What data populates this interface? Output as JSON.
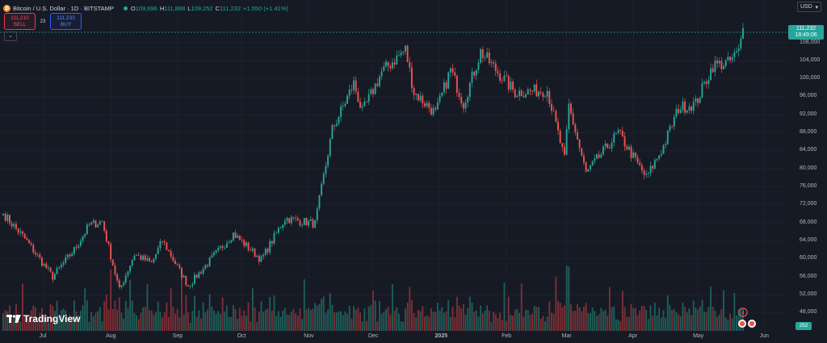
{
  "header": {
    "coin_glyph": "₿",
    "title": "Bitcoin / U.S. Dollar · 1D · BITSTAMP",
    "ohlc": [
      {
        "label": "O",
        "value": "109,696"
      },
      {
        "label": "H",
        "value": "111,888"
      },
      {
        "label": "L",
        "value": "109,252"
      },
      {
        "label": "C",
        "value": "111,232"
      }
    ],
    "change": "+1,550 (+1.41%)"
  },
  "trade": {
    "sell_price": "111,210",
    "sell_label": "SELL",
    "spread": "23",
    "buy_price": "111,233",
    "buy_label": "BUY"
  },
  "collapse_icon": "chevron-down-icon",
  "currency": {
    "label": "USD",
    "icon": "chevron-down-icon"
  },
  "price_axis": {
    "ticks": [
      "108,000",
      "104,000",
      "100,000",
      "96,000",
      "92,000",
      "88,000",
      "84,000",
      "80,000",
      "76,000",
      "72,000",
      "68,000",
      "64,000",
      "60,000",
      "56,000",
      "52,000",
      "48,000"
    ]
  },
  "time_axis": {
    "labels": [
      "Jul",
      "Aug",
      "Sep",
      "Oct",
      "Nov",
      "Dec",
      "2025",
      "Feb",
      "Mar",
      "Apr",
      "May",
      "Jun"
    ]
  },
  "last_price": {
    "value": "111,232",
    "countdown": "18:49:06"
  },
  "volume_label": "252",
  "brand": {
    "logo_text": "TradingView"
  },
  "colors": {
    "up": "#26a69a",
    "down": "#ef5350",
    "background": "#161a25",
    "grid": "#232632",
    "vol_up": "#1f5d58",
    "vol_down": "#7d2f34",
    "sell": "#f23645",
    "buy": "#2962ff",
    "coin": "#f7931a"
  },
  "chart_data": {
    "type": "candlestick",
    "title": "Bitcoin / U.S. Dollar · 1D · BITSTAMP",
    "ylim": [
      46000,
      113000
    ],
    "grid": true,
    "x_start": "2024-06-12",
    "x_end": "2025-05-22",
    "anchors": [
      {
        "date": "2024-06-12",
        "price": 70000
      },
      {
        "date": "2024-06-22",
        "price": 64500
      },
      {
        "date": "2024-07-05",
        "price": 56000
      },
      {
        "date": "2024-07-15",
        "price": 62000
      },
      {
        "date": "2024-07-22",
        "price": 67500
      },
      {
        "date": "2024-07-28",
        "price": 68300
      },
      {
        "date": "2024-08-05",
        "price": 53000
      },
      {
        "date": "2024-08-12",
        "price": 61000
      },
      {
        "date": "2024-08-20",
        "price": 59000
      },
      {
        "date": "2024-08-25",
        "price": 64100
      },
      {
        "date": "2024-09-06",
        "price": 54000
      },
      {
        "date": "2024-09-15",
        "price": 59000
      },
      {
        "date": "2024-09-27",
        "price": 65600
      },
      {
        "date": "2024-10-10",
        "price": 59800
      },
      {
        "date": "2024-10-21",
        "price": 69000
      },
      {
        "date": "2024-11-04",
        "price": 67800
      },
      {
        "date": "2024-11-12",
        "price": 88700
      },
      {
        "date": "2024-11-22",
        "price": 99000
      },
      {
        "date": "2024-11-26",
        "price": 92500
      },
      {
        "date": "2024-12-05",
        "price": 101500
      },
      {
        "date": "2024-12-16",
        "price": 106500
      },
      {
        "date": "2024-12-20",
        "price": 97000
      },
      {
        "date": "2024-12-30",
        "price": 92300
      },
      {
        "date": "2025-01-06",
        "price": 102000
      },
      {
        "date": "2025-01-12",
        "price": 94500
      },
      {
        "date": "2025-01-20",
        "price": 106000
      },
      {
        "date": "2025-01-27",
        "price": 102000
      },
      {
        "date": "2025-02-05",
        "price": 97000
      },
      {
        "date": "2025-02-20",
        "price": 97500
      },
      {
        "date": "2025-02-28",
        "price": 82000
      },
      {
        "date": "2025-03-02",
        "price": 94000
      },
      {
        "date": "2025-03-10",
        "price": 79000
      },
      {
        "date": "2025-03-25",
        "price": 88000
      },
      {
        "date": "2025-04-07",
        "price": 78000
      },
      {
        "date": "2025-04-15",
        "price": 85000
      },
      {
        "date": "2025-04-22",
        "price": 93500
      },
      {
        "date": "2025-04-30",
        "price": 94500
      },
      {
        "date": "2025-05-08",
        "price": 103000
      },
      {
        "date": "2025-05-15",
        "price": 103500
      },
      {
        "date": "2025-05-20",
        "price": 106000
      },
      {
        "date": "2025-05-22",
        "price": 111232
      }
    ]
  }
}
